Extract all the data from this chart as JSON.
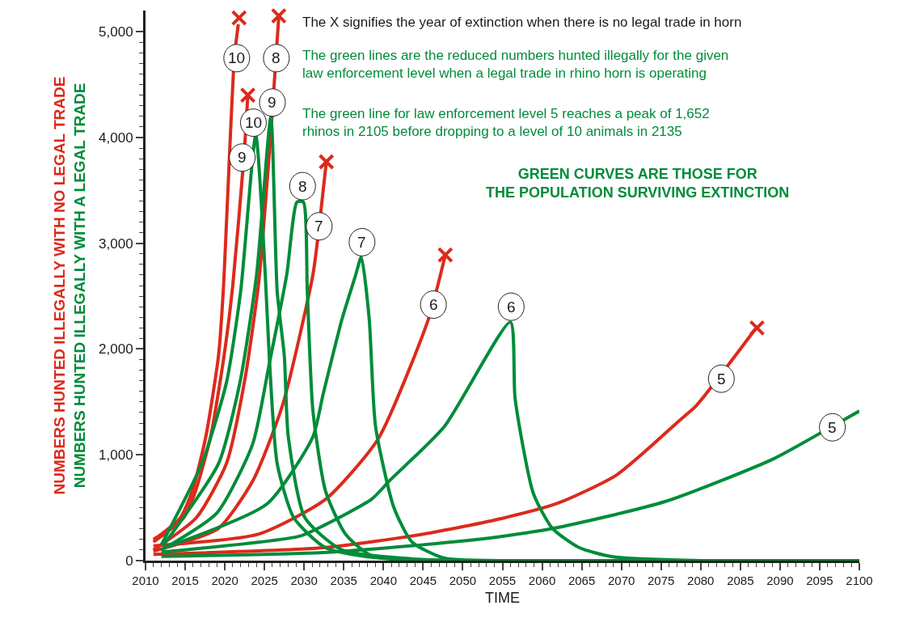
{
  "chart_data": {
    "type": "line",
    "xlabel": "TIME",
    "ylabel": "NUMBERS HUNTED ILLEGALLY WITH NO LEGAL TRADE\nNUMBERS HUNTED ILLEGALLY WITH A LEGAL TRADE",
    "marker": "none",
    "line_style": "solid",
    "xlim": [
      2010,
      2100
    ],
    "ylim": [
      0,
      5200
    ],
    "xticks": [
      2010,
      {
        "value": 2011,
        "label": null
      },
      {
        "value": 2012,
        "label": null
      },
      {
        "value": 2013,
        "label": null
      },
      {
        "value": 2014,
        "label": null
      },
      2015,
      {
        "value": 2016,
        "label": null
      },
      {
        "value": 2017,
        "label": null
      },
      {
        "value": 2018,
        "label": null
      },
      {
        "value": 2019,
        "label": null
      },
      2020,
      {
        "value": 2021,
        "label": null
      },
      {
        "value": 2022,
        "label": null
      },
      {
        "value": 2023,
        "label": null
      },
      {
        "value": 2024,
        "label": null
      },
      2025,
      {
        "value": 2026,
        "label": null
      },
      {
        "value": 2027,
        "label": null
      },
      {
        "value": 2028,
        "label": null
      },
      {
        "value": 2029,
        "label": null
      },
      2030,
      {
        "value": 2031,
        "label": null
      },
      {
        "value": 2032,
        "label": null
      },
      {
        "value": 2033,
        "label": null
      },
      {
        "value": 2034,
        "label": null
      },
      2035,
      {
        "value": 2036,
        "label": null
      },
      {
        "value": 2037,
        "label": null
      },
      {
        "value": 2038,
        "label": null
      },
      {
        "value": 2039,
        "label": null
      },
      2040,
      {
        "value": 2041,
        "label": null
      },
      {
        "value": 2042,
        "label": null
      },
      {
        "value": 2043,
        "label": null
      },
      {
        "value": 2044,
        "label": null
      },
      2045,
      {
        "value": 2046,
        "label": null
      },
      {
        "value": 2047,
        "label": null
      },
      {
        "value": 2048,
        "label": null
      },
      {
        "value": 2049,
        "label": null
      },
      2050,
      {
        "value": 2051,
        "label": null
      },
      {
        "value": 2052,
        "label": null
      },
      {
        "value": 2053,
        "label": null
      },
      {
        "value": 2054,
        "label": null
      },
      2055,
      {
        "value": 2056,
        "label": null
      },
      {
        "value": 2057,
        "label": null
      },
      {
        "value": 2058,
        "label": null
      },
      {
        "value": 2059,
        "label": null
      },
      2060,
      {
        "value": 2061,
        "label": null
      },
      {
        "value": 2062,
        "label": null
      },
      {
        "value": 2063,
        "label": null
      },
      {
        "value": 2064,
        "label": null
      },
      2065,
      {
        "value": 2066,
        "label": null
      },
      {
        "value": 2067,
        "label": null
      },
      {
        "value": 2068,
        "label": null
      },
      {
        "value": 2069,
        "label": null
      },
      2070,
      {
        "value": 2071,
        "label": null
      },
      {
        "value": 2072,
        "label": null
      },
      {
        "value": 2073,
        "label": null
      },
      {
        "value": 2074,
        "label": null
      },
      2075,
      {
        "value": 2076,
        "label": null
      },
      {
        "value": 2077,
        "label": null
      },
      {
        "value": 2078,
        "label": null
      },
      {
        "value": 2079,
        "label": null
      },
      2080,
      {
        "value": 2081,
        "label": null
      },
      {
        "value": 2082,
        "label": null
      },
      {
        "value": 2083,
        "label": null
      },
      {
        "value": 2084,
        "label": null
      },
      2085,
      {
        "value": 2086,
        "label": null
      },
      {
        "value": 2087,
        "label": null
      },
      {
        "value": 2088,
        "label": null
      },
      {
        "value": 2089,
        "label": null
      },
      2090,
      {
        "value": 2091,
        "label": null
      },
      {
        "value": 2092,
        "label": null
      },
      {
        "value": 2093,
        "label": null
      },
      {
        "value": 2094,
        "label": null
      },
      2095,
      {
        "value": 2096,
        "label": null
      },
      {
        "value": 2097,
        "label": null
      },
      {
        "value": 2098,
        "label": null
      },
      {
        "value": 2099,
        "label": null
      },
      2100
    ],
    "yticks": [
      0,
      {
        "value": 100,
        "label": null
      },
      {
        "value": 200,
        "label": null
      },
      {
        "value": 300,
        "label": null
      },
      {
        "value": 400,
        "label": null
      },
      {
        "value": 500,
        "label": null
      },
      {
        "value": 600,
        "label": null
      },
      {
        "value": 700,
        "label": null
      },
      {
        "value": 800,
        "label": null
      },
      {
        "value": 900,
        "label": null
      },
      {
        "value": 1000,
        "label": "1,000"
      },
      {
        "value": 1100,
        "label": null
      },
      {
        "value": 1200,
        "label": null
      },
      {
        "value": 1300,
        "label": null
      },
      {
        "value": 1400,
        "label": null
      },
      {
        "value": 1500,
        "label": null
      },
      {
        "value": 1600,
        "label": null
      },
      {
        "value": 1700,
        "label": null
      },
      {
        "value": 1800,
        "label": null
      },
      {
        "value": 1900,
        "label": null
      },
      {
        "value": 2000,
        "label": "2,000"
      },
      {
        "value": 2100,
        "label": null
      },
      {
        "value": 2200,
        "label": null
      },
      {
        "value": 2300,
        "label": null
      },
      {
        "value": 2400,
        "label": null
      },
      {
        "value": 2500,
        "label": null
      },
      {
        "value": 2600,
        "label": null
      },
      {
        "value": 2700,
        "label": null
      },
      {
        "value": 2800,
        "label": null
      },
      {
        "value": 2900,
        "label": null
      },
      {
        "value": 3000,
        "label": "3,000"
      },
      {
        "value": 3100,
        "label": null
      },
      {
        "value": 3200,
        "label": null
      },
      {
        "value": 3300,
        "label": null
      },
      {
        "value": 3400,
        "label": null
      },
      {
        "value": 3500,
        "label": null
      },
      {
        "value": 3600,
        "label": null
      },
      {
        "value": 3700,
        "label": null
      },
      {
        "value": 3800,
        "label": null
      },
      {
        "value": 3900,
        "label": null
      },
      {
        "value": 4000,
        "label": "4,000"
      },
      {
        "value": 4100,
        "label": null
      },
      {
        "value": 4200,
        "label": null
      },
      {
        "value": 4300,
        "label": null
      },
      {
        "value": 4400,
        "label": null
      },
      {
        "value": 4500,
        "label": null
      },
      {
        "value": 4600,
        "label": null
      },
      {
        "value": 4700,
        "label": null
      },
      {
        "value": 4800,
        "label": null
      },
      {
        "value": 4900,
        "label": null
      },
      {
        "value": 5000,
        "label": "5,000"
      }
    ],
    "series": [
      {
        "color": "#dc2a1c",
        "x": [
          2011,
          2012,
          2014.4,
          2015.9,
          2017.6,
          2019.2,
          2019.8,
          2021.2,
          2021.7
        ],
        "values": [
          200,
          250,
          405,
          657,
          1170,
          1934,
          2546,
          4750,
          5070
        ]
      },
      {
        "color": "#dc2a1c",
        "x": [
          2011,
          2014.8,
          2016.3,
          2018.2,
          2019.9,
          2021,
          2022.4,
          2022.9
        ],
        "values": [
          176,
          405,
          657,
          1170,
          1934,
          2600,
          3810,
          4400
        ]
      },
      {
        "color": "#dc2a1c",
        "x": [
          2011,
          2016.4,
          2020.2,
          2022.5,
          2024.3,
          2025.9,
          2026.8
        ],
        "values": [
          100,
          405,
          917,
          1700,
          2650,
          4150,
          5140
        ]
      },
      {
        "color": "#dc2a1c",
        "x": [
          2011,
          2019.2,
          2023.6,
          2027.3,
          2031.1,
          2031.9,
          2032.8
        ],
        "values": [
          90,
          305,
          765,
          1475,
          2700,
          3160,
          3770
        ]
      },
      {
        "color": "#dc2a1c",
        "x": [
          2011,
          2024.3,
          2032.7,
          2039.3,
          2045.7,
          2047.8
        ],
        "values": [
          140,
          252,
          580,
          1147,
          2290,
          2890
        ]
      },
      {
        "color": "#dc2a1c",
        "x": [
          2011,
          2032.4,
          2045,
          2055,
          2062,
          2069.4,
          2077.3,
          2079.5,
          2087
        ],
        "values": [
          60,
          122,
          250,
          400,
          543,
          810,
          1323,
          1470,
          2200
        ]
      },
      {
        "color": "#008c3a",
        "x": [
          2012,
          2017.1,
          2020.2,
          2022,
          2023.9,
          2025.1,
          2025.6,
          2026.6,
          2028.7,
          2032.7,
          2040,
          2100
        ],
        "values": [
          150,
          917,
          1682,
          2546,
          4020,
          2700,
          1934,
          917,
          405,
          122,
          20,
          0
        ]
      },
      {
        "color": "#008c3a",
        "x": [
          2012.3,
          2019.2,
          2021.9,
          2024,
          2025.8,
          2026.6,
          2027.5,
          2028,
          2030.1,
          2034.8,
          2045,
          2100
        ],
        "values": [
          150,
          917,
          1682,
          2700,
          4190,
          2546,
          1934,
          1170,
          405,
          100,
          10,
          0
        ]
      },
      {
        "color": "#008c3a",
        "x": [
          2012,
          2019,
          2023.5,
          2025.6,
          2027.8,
          2029.1,
          2029.9,
          2030.4,
          2031.1,
          2032.7,
          2035.2,
          2038.5,
          2050,
          2100
        ],
        "values": [
          100,
          450,
          1100,
          1858,
          2700,
          3390,
          3390,
          2546,
          1422,
          657,
          252,
          46,
          0,
          0
        ]
      },
      {
        "color": "#008c3a",
        "x": [
          2012.3,
          2025.3,
          2031.1,
          2032.4,
          2034.8,
          2036.5,
          2037.2,
          2038.2,
          2039,
          2041.3,
          2043.6,
          2047.7,
          2060,
          2100
        ],
        "values": [
          120,
          535,
          1170,
          1575,
          2290,
          2700,
          2870,
          2290,
          1270,
          505,
          176,
          23,
          0,
          0
        ]
      },
      {
        "color": "#008c3a",
        "x": [
          2012,
          2029.4,
          2032.4,
          2038.5,
          2040.9,
          2047.7,
          2056,
          2056.6,
          2058.9,
          2061.3,
          2064.7,
          2068.8,
          2080,
          2100
        ],
        "values": [
          80,
          230,
          330,
          580,
          765,
          1270,
          2255,
          1529,
          635,
          305,
          122,
          38,
          0,
          0
        ]
      },
      {
        "color": "#008c3a",
        "x": [
          2012,
          2032.4,
          2045,
          2055,
          2062,
          2075.5,
          2089.2,
          2096.6,
          2100
        ],
        "values": [
          40,
          76,
          150,
          230,
          313,
          558,
          963,
          1270,
          1414
        ]
      },
      {
        "type": "scatter",
        "marker": "cross",
        "color": "#dc2a1c",
        "x": [
          2021.8,
          2022.9,
          2026.8,
          2032.8,
          2047.8,
          2087.1
        ],
        "values": [
          5130,
          4400,
          5150,
          3770,
          2890,
          2200
        ]
      }
    ],
    "annotations": [
      "The X signifies the year of extinction when there is no legal trade in horn",
      "The green lines are the reduced numbers hunted illegally for the given\nlaw enforcement level when a legal trade in rhino horn is operating",
      "The green line for law enforcement level 5 reaches a peak of 1,652\nrhinos in 2105 before dropping to a level of 10 animals in 2135",
      "GREEN CURVES ARE THOSE FOR\nTHE POPULATION SURVIVING EXTINCTION",
      {
        "text": "10",
        "x": 2021.5,
        "y": 4750
      },
      {
        "text": "8",
        "x": 2026.5,
        "y": 4750
      },
      {
        "text": "9",
        "x": 2026,
        "y": 4330
      },
      {
        "text": "10",
        "x": 2023.6,
        "y": 4140
      },
      {
        "text": "9",
        "x": 2022.2,
        "y": 3810
      },
      {
        "text": "8",
        "x": 2029.8,
        "y": 3540
      },
      {
        "text": "7",
        "x": 2031.9,
        "y": 3160
      },
      {
        "text": "7",
        "x": 2037.3,
        "y": 3010
      },
      {
        "text": "6",
        "x": 2046.3,
        "y": 2420
      },
      {
        "text": "6",
        "x": 2056.1,
        "y": 2400
      },
      {
        "text": "5",
        "x": 2082.6,
        "y": 1720
      },
      {
        "text": "5",
        "x": 2096.6,
        "y": 1260
      }
    ]
  }
}
